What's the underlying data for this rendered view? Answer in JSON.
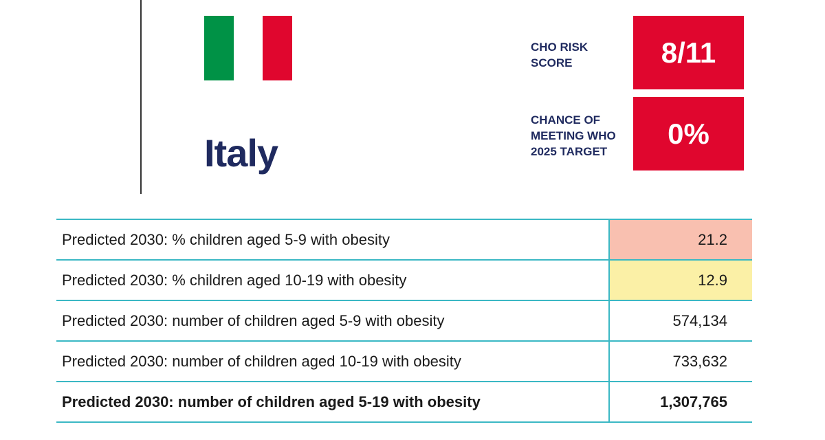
{
  "country": {
    "name": "Italy",
    "flag_icon": "italy-flag-icon",
    "flag_colors": [
      "#009246",
      "#ffffff",
      "#e0062e"
    ]
  },
  "metrics": [
    {
      "label_lines": [
        "CHO RISK",
        "SCORE"
      ],
      "value": "8/11"
    },
    {
      "label_lines": [
        "CHANCE OF",
        "MEETING WHO",
        "2025 TARGET"
      ],
      "value": "0%"
    }
  ],
  "colors": {
    "accent_red": "#e0062e",
    "title_navy": "#1f2a5f",
    "table_border": "#3bb8c4",
    "highlight_salmon": "#f9c0b0",
    "highlight_yellow": "#fbf0a6"
  },
  "table": {
    "rows": [
      {
        "label": "Predicted 2030: % children aged 5-9 with obesity",
        "value": "21.2",
        "highlight": "#f9c0b0"
      },
      {
        "label": "Predicted 2030: % children aged 10-19 with obesity",
        "value": "12.9",
        "highlight": "#fbf0a6"
      },
      {
        "label": "Predicted 2030: number of children aged 5-9 with obesity",
        "value": "574,134"
      },
      {
        "label": "Predicted 2030: number of children aged 10-19 with obesity",
        "value": "733,632"
      },
      {
        "label": "Predicted 2030: number of children aged 5-19 with obesity",
        "value": "1,307,765",
        "bold": true
      }
    ]
  }
}
